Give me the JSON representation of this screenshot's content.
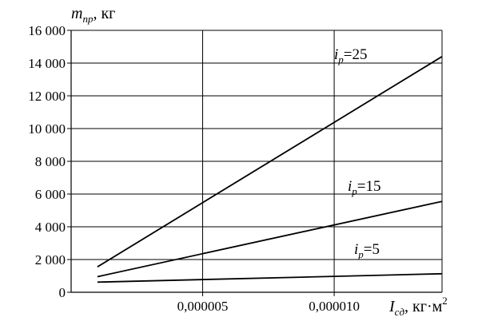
{
  "chart_data": {
    "type": "line",
    "y_label": {
      "var": "m",
      "sub": "пр",
      "unit": ", кг"
    },
    "x_label": {
      "var": "I",
      "sub": "сд",
      "unit": ", кг·м",
      "sup": "2"
    },
    "xlim": [
      0,
      1.41e-05
    ],
    "ylim": [
      0,
      16000
    ],
    "grid": true,
    "y_ticks": [
      {
        "value": 0,
        "label": "0"
      },
      {
        "value": 2000,
        "label": "2 000"
      },
      {
        "value": 4000,
        "label": "4 000"
      },
      {
        "value": 6000,
        "label": "6 000"
      },
      {
        "value": 8000,
        "label": "8 000"
      },
      {
        "value": 10000,
        "label": "10 000"
      },
      {
        "value": 12000,
        "label": "12 000"
      },
      {
        "value": 14000,
        "label": "14 000"
      },
      {
        "value": 16000,
        "label": "16 000"
      }
    ],
    "x_ticks": [
      {
        "value": 5e-06,
        "label": "0,000005"
      },
      {
        "value": 1e-05,
        "label": "0,000010"
      }
    ],
    "series": [
      {
        "var": "i",
        "sub": "p",
        "eq": "=25",
        "x": [
          1e-06,
          1.41e-05
        ],
        "y": [
          1550,
          14400
        ]
      },
      {
        "var": "i",
        "sub": "p",
        "eq": "=15",
        "x": [
          1e-06,
          1.41e-05
        ],
        "y": [
          950,
          5550
        ]
      },
      {
        "var": "i",
        "sub": "p",
        "eq": "=5",
        "x": [
          1e-06,
          1.41e-05
        ],
        "y": [
          620,
          1130
        ]
      }
    ]
  }
}
